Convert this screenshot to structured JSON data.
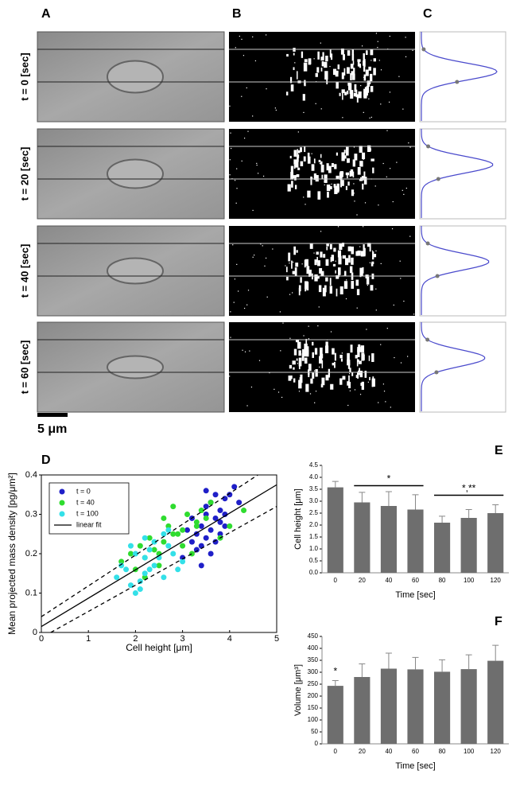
{
  "panels": {
    "labels": [
      "A",
      "B",
      "C"
    ],
    "rows": [
      "t = 0 [sec]",
      "t = 20 [sec]",
      "t = 40 [sec]",
      "t = 60 [sec]"
    ],
    "scale_bar": "5 μm"
  },
  "chart_data": [
    {
      "type": "scatter",
      "panel": "D",
      "xlabel": "Cell height [μm]",
      "ylabel": "Mean projected mass density [pg/μm²]",
      "xlim": [
        0,
        5
      ],
      "xticks": [
        0,
        1,
        2,
        3,
        4,
        5
      ],
      "ylim": [
        0,
        0.4
      ],
      "yticks": [
        0,
        0.1,
        0.2,
        0.3,
        0.4
      ],
      "legend": "top-left",
      "series": [
        {
          "name": "t = 0",
          "color": "#1f1fc8",
          "x": [
            3.2,
            3.3,
            3.4,
            3.5,
            3.5,
            3.6,
            3.7,
            3.8,
            3.9,
            4.0,
            4.1,
            3.4,
            3.6,
            3.8,
            3.3,
            3.5,
            3.7,
            3.9,
            3.1,
            3.4,
            3.6,
            3.8,
            4.2,
            3.5,
            3.2,
            3.0,
            3.7,
            3.9
          ],
          "values": [
            0.23,
            0.25,
            0.27,
            0.3,
            0.36,
            0.33,
            0.29,
            0.31,
            0.34,
            0.35,
            0.37,
            0.22,
            0.26,
            0.28,
            0.21,
            0.24,
            0.23,
            0.27,
            0.26,
            0.17,
            0.2,
            0.25,
            0.33,
            0.32,
            0.29,
            0.19,
            0.35,
            0.3
          ]
        },
        {
          "name": "t = 40",
          "color": "#2fdc2f",
          "x": [
            1.7,
            1.9,
            2.0,
            2.1,
            2.2,
            2.3,
            2.4,
            2.5,
            2.6,
            2.7,
            2.8,
            2.9,
            3.0,
            3.1,
            3.2,
            3.3,
            3.4,
            3.5,
            3.6,
            3.8,
            4.0,
            4.3,
            2.5,
            2.8,
            3.0,
            3.3,
            2.2,
            2.6
          ],
          "values": [
            0.18,
            0.2,
            0.16,
            0.22,
            0.19,
            0.24,
            0.21,
            0.2,
            0.23,
            0.27,
            0.32,
            0.25,
            0.26,
            0.3,
            0.2,
            0.28,
            0.31,
            0.29,
            0.33,
            0.24,
            0.27,
            0.31,
            0.17,
            0.25,
            0.22,
            0.27,
            0.14,
            0.29
          ]
        },
        {
          "name": "t = 100",
          "color": "#33e0e8",
          "x": [
            1.6,
            1.7,
            1.8,
            1.9,
            2.0,
            2.0,
            2.1,
            2.2,
            2.2,
            2.3,
            2.4,
            2.5,
            2.6,
            2.7,
            2.8,
            2.9,
            3.0,
            2.1,
            2.4,
            2.6,
            2.3,
            1.9,
            2.7,
            2.2
          ],
          "values": [
            0.14,
            0.17,
            0.16,
            0.12,
            0.1,
            0.2,
            0.11,
            0.19,
            0.15,
            0.21,
            0.17,
            0.19,
            0.14,
            0.22,
            0.2,
            0.16,
            0.18,
            0.13,
            0.23,
            0.25,
            0.16,
            0.22,
            0.26,
            0.24
          ]
        }
      ],
      "lines": [
        {
          "name": "linear fit",
          "color": "#000000",
          "x": [
            0,
            5
          ],
          "values": [
            0.015,
            0.375
          ]
        },
        {
          "color": "#000000",
          "dash": true,
          "x": [
            0,
            4.6
          ],
          "values": [
            0.04,
            0.4
          ]
        },
        {
          "color": "#000000",
          "dash": true,
          "x": [
            0.2,
            5
          ],
          "values": [
            0,
            0.32
          ]
        }
      ]
    },
    {
      "type": "bar",
      "panel": "E",
      "xlabel": "Time [sec]",
      "ylabel": "Cell height [μm]",
      "color": "#6e6e6e",
      "categories": [
        "0",
        "20",
        "40",
        "60",
        "80",
        "100",
        "120"
      ],
      "values": [
        3.58,
        2.95,
        2.8,
        2.65,
        2.1,
        2.3,
        2.5
      ],
      "errors": [
        0.25,
        0.42,
        0.6,
        0.62,
        0.27,
        0.35,
        0.35
      ],
      "ylim": [
        0,
        4.5
      ],
      "yticks": [
        {
          "value": 0,
          "label": "0.0"
        },
        0.5,
        {
          "value": 1,
          "label": "1.0"
        },
        1.5,
        {
          "value": 2,
          "label": "2.0"
        },
        2.5,
        {
          "value": 3,
          "label": "3.0"
        },
        3.5,
        {
          "value": 4,
          "label": "4.0"
        },
        4.5
      ],
      "annotations": [
        {
          "text": "*",
          "from": 1,
          "to": 3,
          "y": 3.65
        },
        {
          "text": "*,**",
          "from": 4,
          "to": 6,
          "y": 3.25
        }
      ]
    },
    {
      "type": "bar",
      "panel": "F",
      "xlabel": "Time [sec]",
      "ylabel": "Volume [μm³]",
      "color": "#6e6e6e",
      "categories": [
        "0",
        "20",
        "40",
        "60",
        "80",
        "100",
        "120"
      ],
      "values": [
        243,
        280,
        315,
        312,
        302,
        313,
        348
      ],
      "errors": [
        22,
        55,
        65,
        50,
        50,
        60,
        65
      ],
      "ylim": [
        0,
        450
      ],
      "yticks": [
        0,
        50,
        100,
        150,
        200,
        250,
        300,
        350,
        400,
        450
      ],
      "annotations": [
        {
          "text": "*",
          "from": 0,
          "to": 0,
          "y": 275
        }
      ]
    }
  ]
}
